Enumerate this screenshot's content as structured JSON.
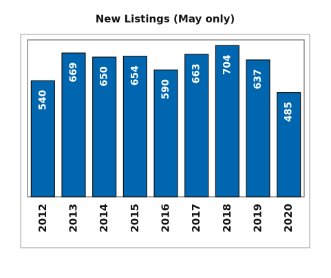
{
  "chart_data": {
    "type": "bar",
    "title": "New Listings (May only)",
    "categories": [
      "2012",
      "2013",
      "2014",
      "2015",
      "2016",
      "2017",
      "2018",
      "2019",
      "2020"
    ],
    "values": [
      540,
      669,
      650,
      654,
      590,
      663,
      704,
      637,
      485
    ],
    "color": "#0066b0",
    "ylim": [
      0,
      730
    ]
  }
}
